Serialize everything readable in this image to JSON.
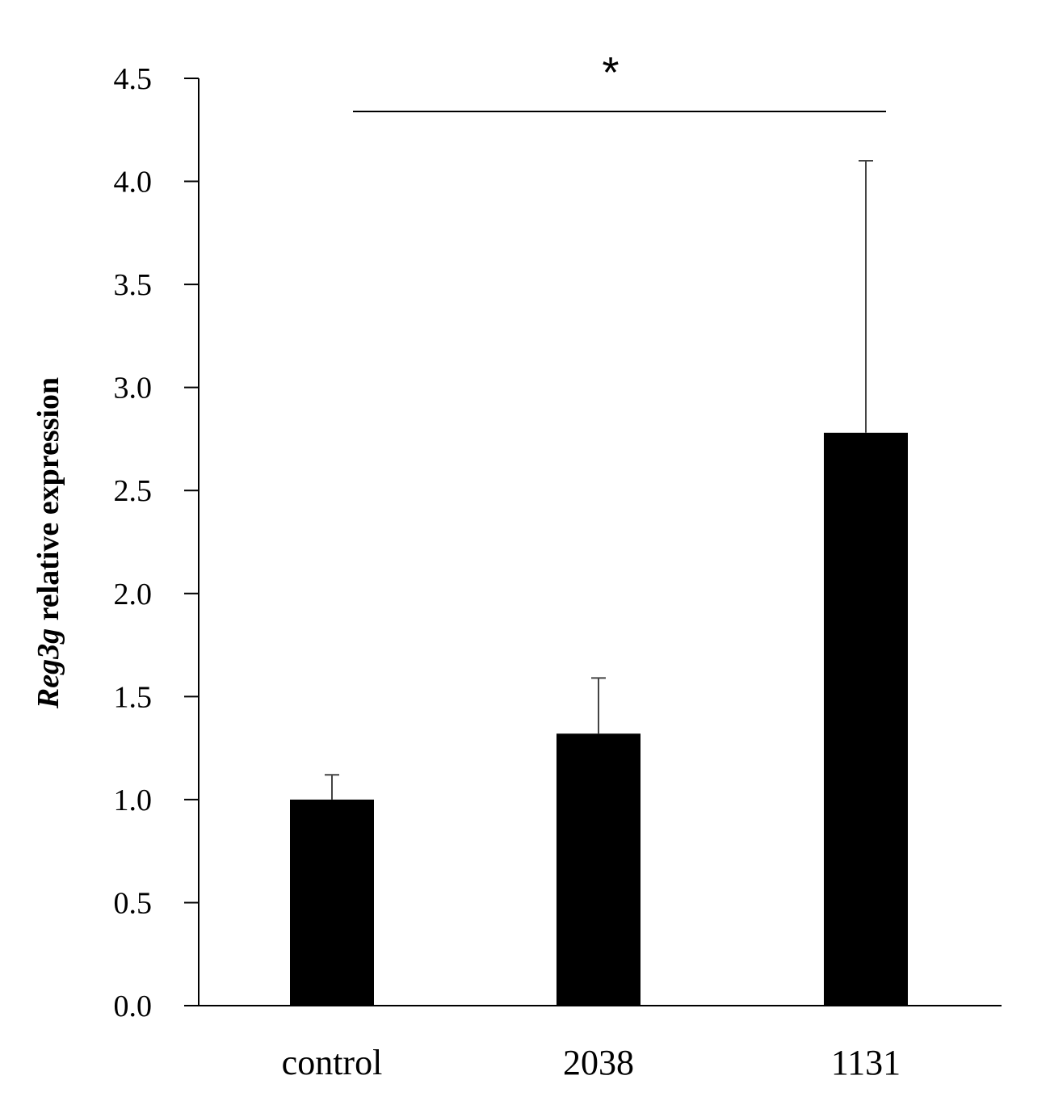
{
  "chart_data": {
    "type": "bar",
    "categories": [
      "control",
      "2038",
      "1131"
    ],
    "values": [
      1.0,
      1.32,
      2.78
    ],
    "error_upper": [
      1.12,
      1.59,
      4.1
    ],
    "ylabel_italic": "Reg3g",
    "ylabel_rest": " relative expression",
    "ylim": [
      0,
      4.5
    ],
    "yticks": [
      "0.0",
      "0.5",
      "1.0",
      "1.5",
      "2.0",
      "2.5",
      "3.0",
      "3.5",
      "4.0",
      "4.5"
    ],
    "significance": {
      "label": "*",
      "from": "control",
      "to": "1131"
    },
    "bar_color": "#000000",
    "grid": false,
    "legend": "none"
  }
}
